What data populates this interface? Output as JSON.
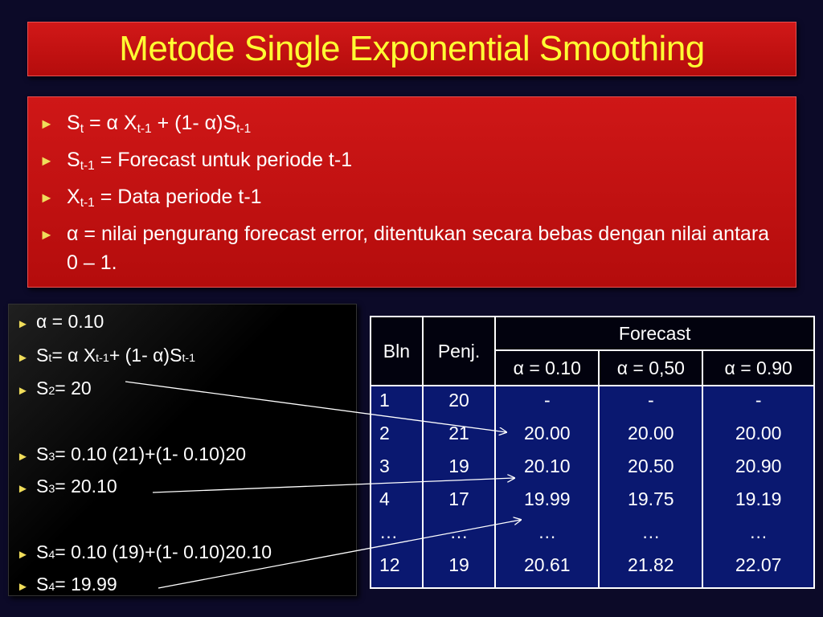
{
  "title": "Metode Single Exponential Smoothing",
  "definitions": {
    "formula": {
      "s": "S",
      "s_sub": "t",
      "mid1": " = α X",
      "x_sub": "t-1",
      "mid2": " + (1- α)S",
      "s2_sub": "t-1"
    },
    "forecast": {
      "s": "S",
      "sub": "t-1",
      "rest": " = Forecast untuk periode t-1"
    },
    "data": {
      "x": "X",
      "sub": "t-1",
      "rest": " = Data periode t-1"
    },
    "alpha": "α = nilai pengurang forecast error, ditentukan secara bebas dengan nilai antara 0 – 1."
  },
  "calc": {
    "line1": "α = 0.10",
    "formula": {
      "s": "S",
      "s_sub": "t",
      "mid1": " = α X",
      "x_sub": "t-1",
      "mid2": " + (1- α)S",
      "s2_sub": "t-1"
    },
    "s2": {
      "s": "S",
      "sub": "2",
      "rest": " = 20"
    },
    "s3a": {
      "s": "S",
      "sub": "3",
      "rest": " = 0.10 (21)+(1- 0.10)20"
    },
    "s3b": {
      "s": "S",
      "sub": "3",
      "rest": " = 20.10"
    },
    "s4a": {
      "s": "S",
      "sub": "4",
      "rest": " = 0.10 (19)+(1- 0.10)20.10"
    },
    "s4b": {
      "s": "S",
      "sub": "4",
      "rest": " = 19.99"
    }
  },
  "table": {
    "headers": {
      "bln": "Bln",
      "penj": "Penj.",
      "forecast": "Forecast",
      "a1": "α = 0.10",
      "a2": "α = 0,50",
      "a3": "α = 0.90"
    },
    "rows": [
      {
        "bln": "1",
        "penj": "20",
        "a1": "-",
        "a2": "-",
        "a3": "-"
      },
      {
        "bln": "2",
        "penj": "21",
        "a1": "20.00",
        "a2": "20.00",
        "a3": "20.00"
      },
      {
        "bln": "3",
        "penj": "19",
        "a1": "20.10",
        "a2": "20.50",
        "a3": "20.90"
      },
      {
        "bln": "4",
        "penj": "17",
        "a1": "19.99",
        "a2": "19.75",
        "a3": "19.19"
      },
      {
        "bln": "…",
        "penj": "…",
        "a1": "…",
        "a2": "…",
        "a3": "…"
      },
      {
        "bln": "12",
        "penj": "19",
        "a1": "20.61",
        "a2": "21.82",
        "a3": "22.07"
      }
    ]
  },
  "colors": {
    "title_text": "#ffff33",
    "red_panel": "#c41212",
    "table_body": "#0a1870",
    "bullet": "#f0dd5a"
  },
  "icons": {
    "bullet": "triangle-right-icon",
    "arrow": "arrow-connector-icon"
  }
}
